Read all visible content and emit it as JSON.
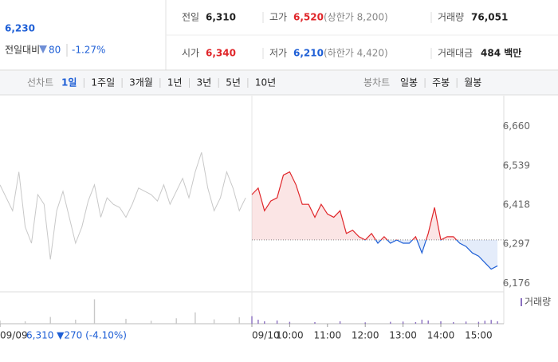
{
  "quote": {
    "price": "6,230",
    "change_label": "전일대비",
    "change": "80",
    "change_pct": "-1.27%"
  },
  "summary": [
    {
      "label": "전일",
      "value": "6,310",
      "color": "#222"
    },
    {
      "label": "고가",
      "value": "6,520",
      "note": "(상한가 8,200)",
      "color": "#e0262a"
    },
    {
      "label": "거래량",
      "value": "76,051",
      "color": "#222"
    },
    {
      "label": "시가",
      "value": "6,340",
      "color": "#e0262a"
    },
    {
      "label": "저가",
      "value": "6,210",
      "note": "(하한가 4,420)",
      "color": "#1e5fd6"
    },
    {
      "label": "거래대금",
      "value": "484 백만",
      "color": "#222"
    }
  ],
  "tabs": {
    "line_label": "선차트",
    "line": [
      "1일",
      "1주일",
      "3개월",
      "1년",
      "3년",
      "5년",
      "10년"
    ],
    "active": "1일",
    "candle_label": "봉차트",
    "candle": [
      "일봉",
      "주봉",
      "월봉"
    ]
  },
  "chart_data": {
    "type": "line",
    "prev_day_label": "6,310 ▼270 (-4.10%)",
    "baseline": 6310,
    "xlim": [
      0,
      80
    ],
    "ylim": [
      6150,
      6750
    ],
    "yticks": [
      {
        "value": 6660,
        "label": "6,660"
      },
      {
        "value": 6539,
        "label": "6,539"
      },
      {
        "value": 6418,
        "label": "6,418"
      },
      {
        "value": 6297,
        "label": "6,297"
      },
      {
        "value": 6176,
        "label": "6,176"
      }
    ],
    "xticks": [
      {
        "value": 0,
        "label": "09/09"
      },
      {
        "value": 40,
        "label": "09/10"
      },
      {
        "value": 46,
        "label": "10:00"
      },
      {
        "value": 52,
        "label": "11:00"
      },
      {
        "value": 58,
        "label": "12:00"
      },
      {
        "value": 64,
        "label": "13:00"
      },
      {
        "value": 70,
        "label": "14:00"
      },
      {
        "value": 76,
        "label": "15:00"
      }
    ],
    "y2lim": [
      0,
      10000
    ],
    "series": [
      {
        "color": "#c8c8c8",
        "x": [
          0,
          1,
          2,
          3,
          4,
          5,
          6,
          7,
          8,
          9,
          10,
          11,
          12,
          13,
          14,
          15,
          16,
          17,
          18,
          19,
          20,
          21,
          22,
          23,
          24,
          25,
          26,
          27,
          28,
          29,
          30,
          31,
          32,
          33,
          34,
          35,
          36,
          37,
          38,
          39
        ],
        "values": [
          6480,
          6440,
          6400,
          6520,
          6350,
          6300,
          6450,
          6420,
          6250,
          6400,
          6460,
          6380,
          6300,
          6350,
          6430,
          6480,
          6380,
          6440,
          6420,
          6410,
          6380,
          6420,
          6470,
          6460,
          6450,
          6430,
          6480,
          6420,
          6460,
          6500,
          6440,
          6520,
          6580,
          6470,
          6400,
          6440,
          6520,
          6470,
          6400,
          6440
        ]
      },
      {
        "up_color": "#e0262a",
        "down_color": "#1e5fd6",
        "x": [
          40,
          41,
          42,
          43,
          44,
          45,
          46,
          47,
          48,
          49,
          50,
          51,
          52,
          53,
          54,
          55,
          56,
          57,
          58,
          59,
          60,
          61,
          62,
          63,
          64,
          65,
          66,
          67,
          68,
          69,
          70,
          71,
          72,
          73,
          74,
          75,
          76,
          77,
          78,
          79
        ],
        "values": [
          6450,
          6470,
          6400,
          6430,
          6440,
          6510,
          6520,
          6480,
          6420,
          6420,
          6380,
          6420,
          6390,
          6380,
          6400,
          6330,
          6340,
          6320,
          6310,
          6330,
          6300,
          6320,
          6300,
          6310,
          6300,
          6300,
          6320,
          6270,
          6330,
          6410,
          6310,
          6320,
          6320,
          6300,
          6290,
          6270,
          6260,
          6240,
          6220,
          6230
        ]
      },
      {
        "name": "거래량",
        "color": "#8a6fc0",
        "axis": "y2",
        "x": [
          0,
          4,
          8,
          12,
          15,
          20,
          24,
          28,
          31,
          34,
          38,
          40,
          41,
          42,
          44,
          46,
          50,
          54,
          58,
          62,
          64,
          66,
          67,
          68,
          70,
          72,
          74,
          76,
          77,
          78,
          79
        ],
        "values": [
          1200,
          900,
          2500,
          1500,
          9000,
          1800,
          1100,
          2000,
          4200,
          1600,
          2400,
          2800,
          1500,
          900,
          1200,
          700,
          600,
          900,
          500,
          700,
          800,
          600,
          1500,
          1200,
          900,
          600,
          800,
          700,
          1100,
          1400,
          900
        ]
      }
    ]
  }
}
